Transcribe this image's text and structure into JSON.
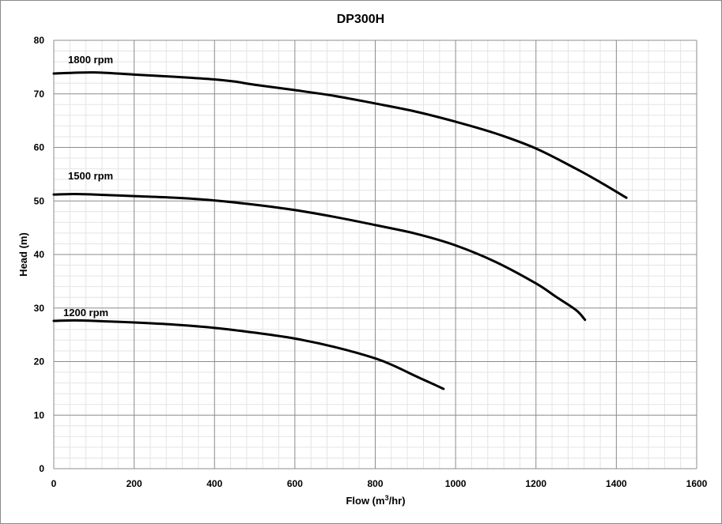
{
  "chart_data": {
    "type": "line",
    "title": "DP300H",
    "xlabel": "Flow (m3/hr)",
    "xlabel_parts": {
      "before": "Flow (m",
      "sup": "3",
      "after": "/hr)"
    },
    "ylabel": "Head (m)",
    "xlim": [
      0,
      1600
    ],
    "ylim": [
      0,
      80
    ],
    "x_ticks": [
      0,
      200,
      400,
      600,
      800,
      1000,
      1200,
      1400,
      1600
    ],
    "y_ticks": [
      0,
      10,
      20,
      30,
      40,
      50,
      60,
      70,
      80
    ],
    "x_minor_step": 40,
    "y_minor_step": 2,
    "grid": true,
    "legend": "none",
    "series": [
      {
        "name": "1800 rpm",
        "x": [
          0,
          100,
          200,
          300,
          400,
          450,
          500,
          600,
          700,
          800,
          900,
          1000,
          1100,
          1200,
          1300,
          1360,
          1425
        ],
        "y": [
          73.8,
          74.0,
          73.6,
          73.2,
          72.7,
          72.3,
          71.7,
          70.7,
          69.6,
          68.2,
          66.7,
          64.8,
          62.6,
          59.8,
          56.0,
          53.5,
          50.6
        ]
      },
      {
        "name": "1500 rpm",
        "x": [
          0,
          50,
          100,
          200,
          300,
          400,
          500,
          600,
          700,
          800,
          900,
          1000,
          1100,
          1200,
          1250,
          1300,
          1322
        ],
        "y": [
          51.2,
          51.3,
          51.2,
          50.9,
          50.6,
          50.1,
          49.3,
          48.3,
          47.0,
          45.5,
          43.9,
          41.7,
          38.6,
          34.6,
          32.1,
          29.6,
          27.8
        ]
      },
      {
        "name": "1200 rpm",
        "x": [
          0,
          50,
          100,
          200,
          300,
          400,
          500,
          600,
          700,
          800,
          850,
          900,
          950,
          970
        ],
        "y": [
          27.6,
          27.7,
          27.6,
          27.3,
          26.9,
          26.3,
          25.4,
          24.3,
          22.7,
          20.6,
          19.1,
          17.3,
          15.6,
          14.9
        ]
      }
    ]
  }
}
